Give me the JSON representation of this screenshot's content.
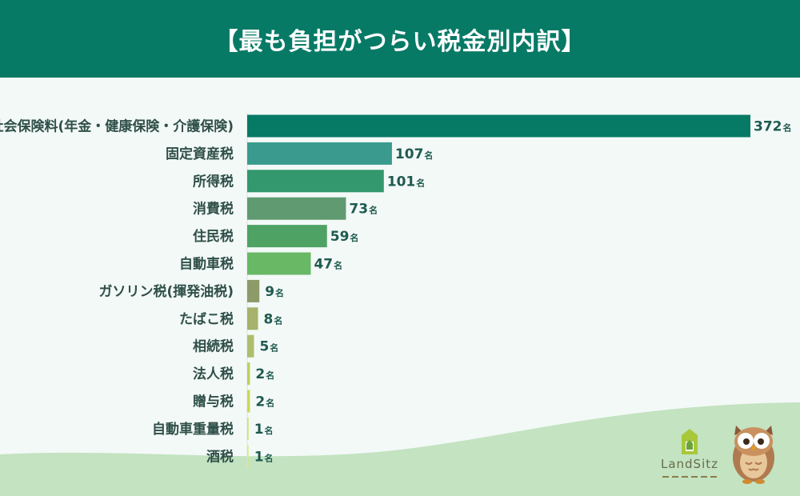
{
  "header": {
    "title": "【最も負担がつらい税金別内訳】"
  },
  "logo": {
    "name": "LandSitz"
  },
  "colors": {
    "header": "#077a66",
    "background": "#f3f9f7",
    "wave": "#c3e3c1"
  },
  "chart_data": {
    "type": "bar",
    "orientation": "horizontal",
    "title": "【最も負担がつらい税金別内訳】",
    "unit": "名",
    "categories": [
      "社会保険料(年金・健康保険・介護保険)",
      "固定資産税",
      "所得税",
      "消費税",
      "住民税",
      "自動車税",
      "ガソリン税(揮発油税)",
      "たばこ税",
      "相続税",
      "法人税",
      "贈与税",
      "自動車重量税",
      "酒税"
    ],
    "values": [
      372,
      107,
      101,
      73,
      59,
      47,
      9,
      8,
      5,
      2,
      2,
      1,
      1
    ],
    "bar_colors": [
      "#077a66",
      "#3a9a8d",
      "#33986d",
      "#5f9a70",
      "#4ea364",
      "#68b866",
      "#8e9a68",
      "#a7b26a",
      "#aebe6d",
      "#bfcd5d",
      "#ccd84f",
      "#d4e15d",
      "#dde97a"
    ],
    "xlim": [
      0,
      372
    ],
    "grid": false,
    "legend": "none"
  }
}
